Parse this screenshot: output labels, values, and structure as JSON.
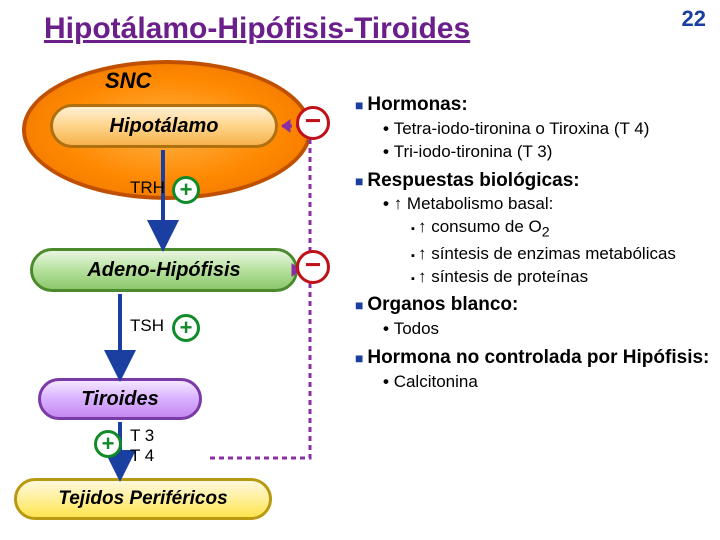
{
  "page": {
    "number": "22",
    "title": "Hipotálamo-Hipófisis-Tiroides"
  },
  "colors": {
    "title": "#6a1f8a",
    "pagenum": "#1a3fa0",
    "snc_border": "#c05000",
    "hipo_border": "#b07010",
    "adeno_border": "#4c8a2e",
    "tiroides_border": "#7a3aa8",
    "tejidos_border": "#b89a12",
    "arrow_down": "#1a3fa0",
    "plus": "#118a28",
    "minus": "#c01018",
    "feedback": "#8a2fa3",
    "bullet_sq": "#1a3fa0",
    "text": "#000000"
  },
  "diagram": {
    "snc": "SNC",
    "boxes": {
      "hipotalamo": "Hipotálamo",
      "adeno": "Adeno-Hipófisis",
      "tiroides": "Tiroides",
      "tejidos": "Tejidos Periféricos"
    },
    "labels": {
      "trh": "TRH",
      "tsh": "TSH",
      "t3t4": "T 3\nT 4"
    }
  },
  "content": {
    "h_hormonas": "Hormonas:",
    "hormonas": [
      "Tetra-iodo-tironina o Tiroxina (T 4)",
      "Tri-iodo-tironina (T 3)"
    ],
    "h_resp": "Respuestas biológicas:",
    "resp_main": "Metabolismo basal:",
    "resp_sub": [
      "consumo de O",
      "síntesis de enzimas metabólicas",
      "síntesis de proteínas"
    ],
    "o2sub": "2",
    "h_org": "Organos blanco:",
    "org": [
      "Todos"
    ],
    "h_noctrl": "Hormona no controlada por Hipófisis:",
    "noctrl": [
      "Calcitonina"
    ]
  }
}
